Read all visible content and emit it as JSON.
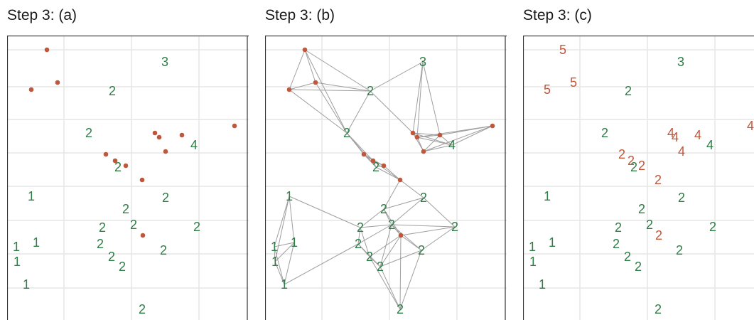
{
  "panels": [
    {
      "title": "Step 3: (a)",
      "show_edges": false,
      "show_cluster_labels": false
    },
    {
      "title": "Step 3: (b)",
      "show_edges": true,
      "show_cluster_labels": false
    },
    {
      "title": "Step 3: (c)",
      "show_edges": false,
      "show_cluster_labels": true
    }
  ],
  "colors": {
    "green": "#2e7d46",
    "red": "#c0573b",
    "grid": "#e6e6e6",
    "border": "#333333",
    "edge": "#9e9e9e"
  },
  "chart_data": {
    "type": "scatter",
    "x_range": [
      0,
      340
    ],
    "y_range": [
      0,
      400
    ],
    "labeled_points": [
      {
        "x": 222,
        "y": 37,
        "label": "3"
      },
      {
        "x": 148,
        "y": 78,
        "label": "2"
      },
      {
        "x": 115,
        "y": 137,
        "label": "2"
      },
      {
        "x": 263,
        "y": 154,
        "label": "4"
      },
      {
        "x": 156,
        "y": 185,
        "label": "2"
      },
      {
        "x": 34,
        "y": 226,
        "label": "1"
      },
      {
        "x": 223,
        "y": 228,
        "label": "2"
      },
      {
        "x": 167,
        "y": 244,
        "label": "2"
      },
      {
        "x": 178,
        "y": 266,
        "label": "2"
      },
      {
        "x": 134,
        "y": 270,
        "label": "2"
      },
      {
        "x": 267,
        "y": 269,
        "label": "2"
      },
      {
        "x": 41,
        "y": 291,
        "label": "1"
      },
      {
        "x": 131,
        "y": 293,
        "label": "2"
      },
      {
        "x": 13,
        "y": 297,
        "label": "1"
      },
      {
        "x": 220,
        "y": 302,
        "label": "2"
      },
      {
        "x": 147,
        "y": 311,
        "label": "2"
      },
      {
        "x": 162,
        "y": 325,
        "label": "2"
      },
      {
        "x": 14,
        "y": 318,
        "label": "1"
      },
      {
        "x": 27,
        "y": 350,
        "label": "1"
      },
      {
        "x": 190,
        "y": 385,
        "label": "2"
      }
    ],
    "unlabeled_points": [
      {
        "x": 56,
        "y": 20,
        "cluster": "5"
      },
      {
        "x": 34,
        "y": 76,
        "cluster": "5"
      },
      {
        "x": 71,
        "y": 66,
        "cluster": "5"
      },
      {
        "x": 208,
        "y": 137,
        "cluster": "4"
      },
      {
        "x": 214,
        "y": 143,
        "cluster": "4"
      },
      {
        "x": 246,
        "y": 140,
        "cluster": "4"
      },
      {
        "x": 320,
        "y": 127,
        "cluster": "4"
      },
      {
        "x": 223,
        "y": 163,
        "cluster": "4"
      },
      {
        "x": 139,
        "y": 167,
        "cluster": "2"
      },
      {
        "x": 152,
        "y": 176,
        "cluster": "2"
      },
      {
        "x": 167,
        "y": 183,
        "cluster": "2"
      },
      {
        "x": 190,
        "y": 203,
        "cluster": "2"
      },
      {
        "x": 191,
        "y": 281,
        "cluster": "2"
      }
    ]
  }
}
